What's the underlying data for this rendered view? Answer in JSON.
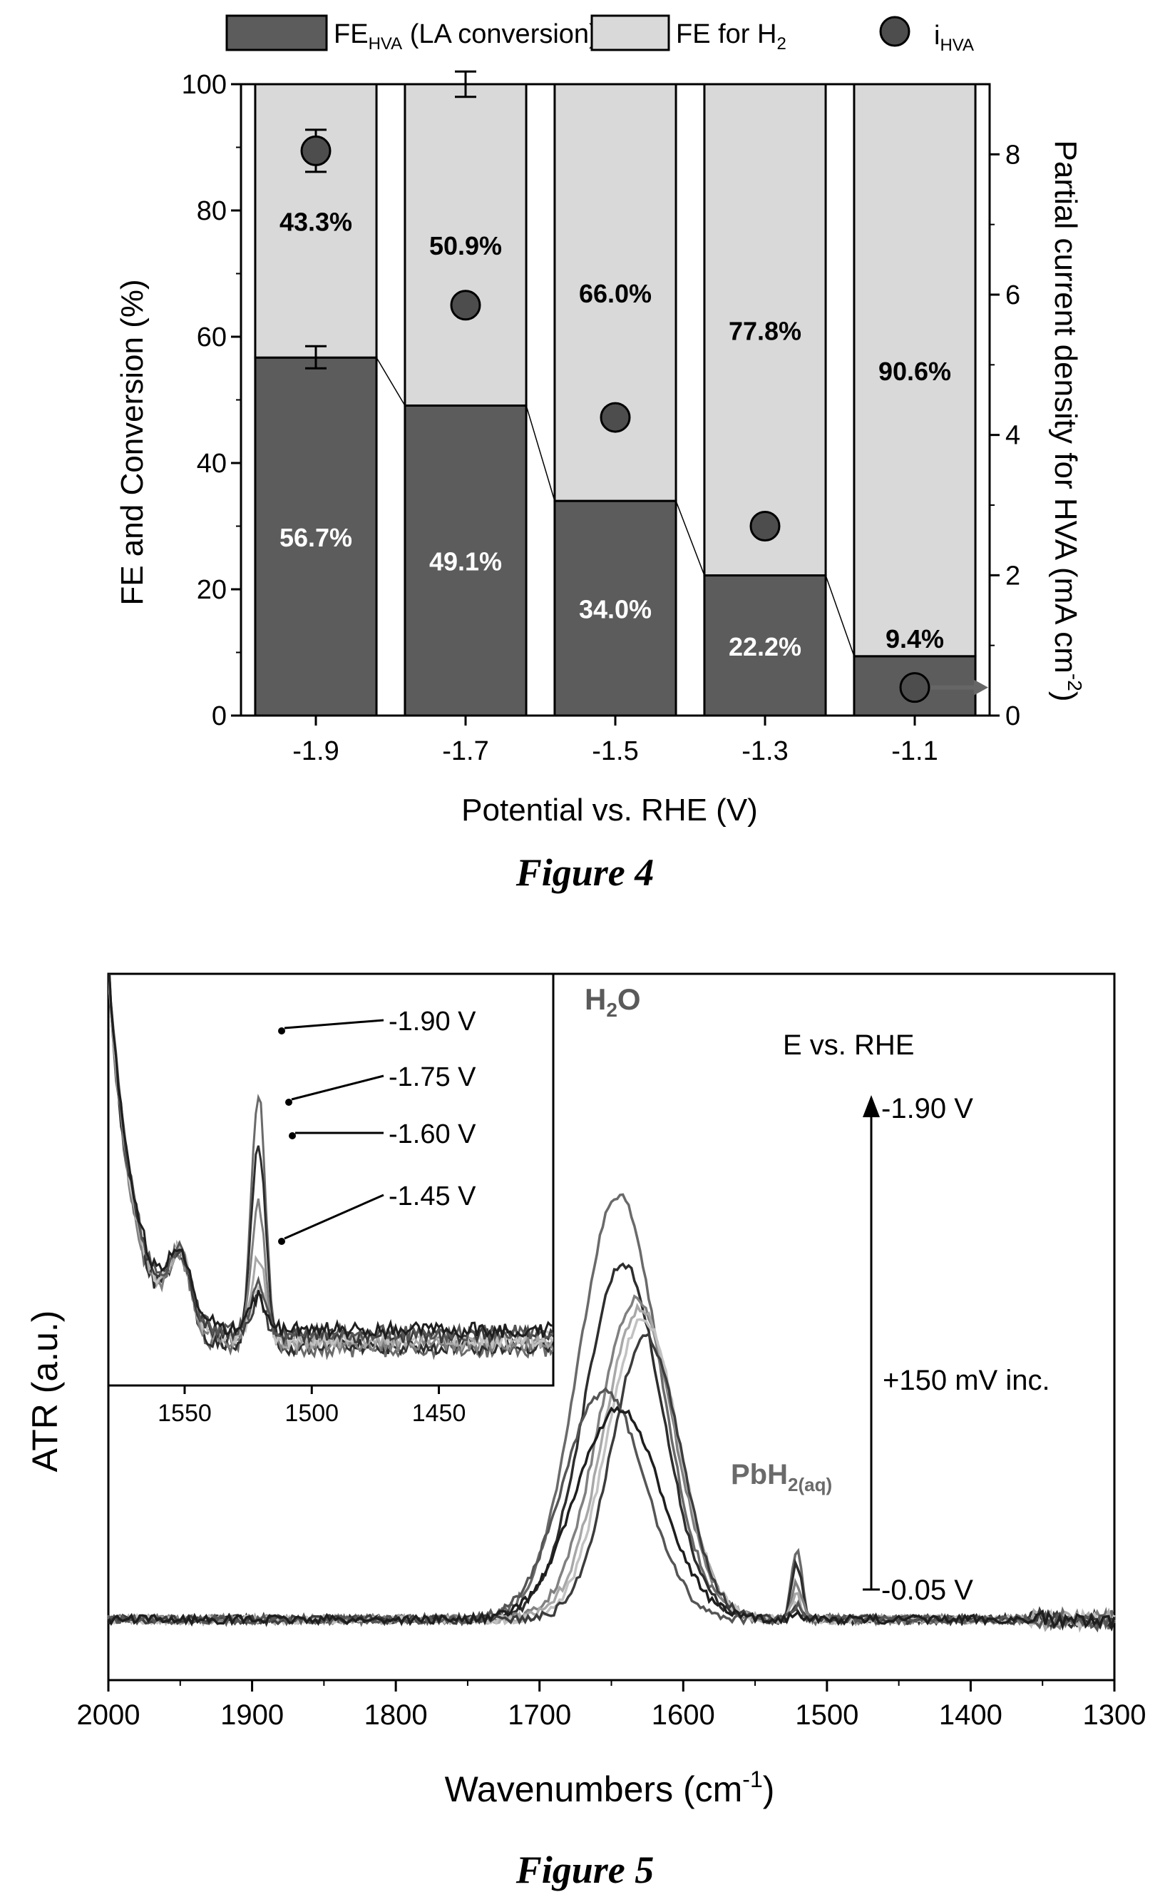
{
  "figure4": {
    "caption": "Figure 4",
    "colors": {
      "fe_hva": "#5c5c5c",
      "fe_h2": "#d9d9d9",
      "marker": "#4d4d4d"
    },
    "chart_data": {
      "type": "bar",
      "stacked": true,
      "categories": [
        "-1.9",
        "-1.7",
        "-1.5",
        "-1.3",
        "-1.1"
      ],
      "series": [
        {
          "name_main": "FE",
          "name_sub": "HVA",
          "name_rest": " (LA conversion)",
          "values": [
            56.7,
            49.1,
            34.0,
            22.2,
            9.4
          ],
          "labels": [
            "56.7%",
            "49.1%",
            "34.0%",
            "22.2%",
            "9.4%"
          ]
        },
        {
          "name_main": "FE for H",
          "name_sub": "2",
          "name_rest": "",
          "values": [
            43.3,
            50.9,
            66.0,
            77.8,
            90.6
          ],
          "labels": [
            "43.3%",
            "50.9%",
            "66.0%",
            "77.8%",
            "90.6%"
          ]
        }
      ],
      "secondary_series": {
        "name_main": "i",
        "name_sub": "HVA",
        "axis": "right",
        "values": [
          8.05,
          5.85,
          4.25,
          2.7,
          0.4
        ],
        "error_bars": [
          [
            7.75,
            8.35
          ],
          null,
          null,
          null,
          null
        ]
      },
      "fe_error_bars": [
        [
          55.0,
          58.5
        ],
        [
          98.0,
          102.0
        ],
        null,
        null,
        null
      ],
      "xlabel": "Potential vs. RHE (V)",
      "ylabel": "FE and Conversion (%)",
      "ylabel_right_main": "Partial current density for HVA (mA cm",
      "ylabel_right_sup": "-2",
      "ylabel_right_end": ")",
      "ylim": [
        0,
        100
      ],
      "ylim_right": [
        0,
        9
      ],
      "yticks": [
        0,
        20,
        40,
        60,
        80,
        100
      ],
      "yticks_right": [
        0,
        2,
        4,
        6,
        8
      ],
      "legend": "top"
    }
  },
  "figure5": {
    "caption": "Figure 5",
    "chart_data": {
      "type": "line",
      "xlabel_main": "Wavenumbers (cm",
      "xlabel_sup": "-1",
      "xlabel_end": ")",
      "ylabel": "ATR (a.u.)",
      "xlim": [
        2000,
        1300
      ],
      "xticks": [
        2000,
        1900,
        1800,
        1700,
        1600,
        1500,
        1400,
        1300
      ],
      "annotations": {
        "h2o_main": "H",
        "h2o_sub": "2",
        "h2o_end": "O",
        "pbh2_main": "PbH",
        "pbh2_sub": "2(aq)",
        "e_vs_rhe": "E vs. RHE",
        "arrow_top": "-1.90 V",
        "arrow_mid": "+150 mV inc.",
        "arrow_bottom": "-0.05 V"
      },
      "series": [
        {
          "peak_x": 1645,
          "peak_h": 0.93,
          "width": 40,
          "pb": 0.15,
          "color": "#6a6a6a"
        },
        {
          "peak_x": 1642,
          "peak_h": 0.78,
          "width": 38,
          "pb": 0.12,
          "color": "#2d2d2d"
        },
        {
          "peak_x": 1633,
          "peak_h": 0.7,
          "width": 37,
          "pb": 0.08,
          "color": "#808080"
        },
        {
          "peak_x": 1630,
          "peak_h": 0.68,
          "width": 36,
          "pb": 0.05,
          "color": "#a8a8a8"
        },
        {
          "peak_x": 1628,
          "peak_h": 0.66,
          "width": 35,
          "pb": 0.03,
          "color": "#c2c2c2"
        },
        {
          "peak_x": 1626,
          "peak_h": 0.62,
          "width": 34,
          "pb": 0.02,
          "color": "#3c3c3c"
        },
        {
          "peak_x": 1655,
          "peak_h": 0.5,
          "width": 40,
          "pb": 0.03,
          "color": "#555555"
        },
        {
          "peak_x": 1645,
          "peak_h": 0.46,
          "width": 42,
          "pb": 0.02,
          "color": "#1e1e1e"
        }
      ],
      "inset": {
        "xlim": [
          1580,
          1405
        ],
        "xticks": [
          1550,
          1500,
          1450
        ],
        "labels": [
          "-1.90 V",
          "-1.75 V",
          "-1.60 V",
          "-1.45 V"
        ]
      }
    }
  }
}
